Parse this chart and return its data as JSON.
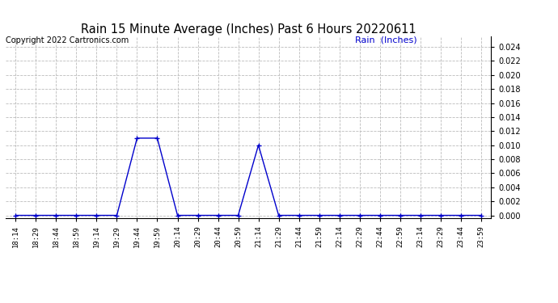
{
  "title": "Rain 15 Minute Average (Inches) Past 6 Hours 20220611",
  "copyright_text": "Copyright 2022 Cartronics.com",
  "legend_label": "Rain  (Inches)",
  "x_labels": [
    "18:14",
    "18:29",
    "18:44",
    "18:59",
    "19:14",
    "19:29",
    "19:44",
    "19:59",
    "20:14",
    "20:29",
    "20:44",
    "20:59",
    "21:14",
    "21:29",
    "21:44",
    "21:59",
    "22:14",
    "22:29",
    "22:44",
    "22:59",
    "23:14",
    "23:29",
    "23:44",
    "23:59"
  ],
  "y_values": [
    0.0,
    0.0,
    0.0,
    0.0,
    0.0,
    0.0,
    0.011,
    0.011,
    0.0,
    0.0,
    0.0,
    0.0,
    0.01,
    0.0,
    0.0,
    0.0,
    0.0,
    0.0,
    0.0,
    0.0,
    0.0,
    0.0,
    0.0,
    0.0
  ],
  "line_color": "#0000cc",
  "marker": "+",
  "marker_size": 4,
  "marker_linewidth": 1.0,
  "linewidth": 1.0,
  "ylim_min": -0.0004,
  "ylim_max": 0.0255,
  "ytick_min": 0.0,
  "ytick_max": 0.024,
  "ytick_step": 0.002,
  "grid_color": "#bbbbbb",
  "grid_style": "dashed",
  "grid_linewidth": 0.6,
  "bg_color": "#ffffff",
  "title_fontsize": 10.5,
  "tick_fontsize": 7,
  "xtick_fontsize": 6.5,
  "copyright_fontsize": 7,
  "legend_fontsize": 8,
  "title_color": "#000000",
  "copyright_color": "#000000",
  "legend_color": "#0000cc"
}
